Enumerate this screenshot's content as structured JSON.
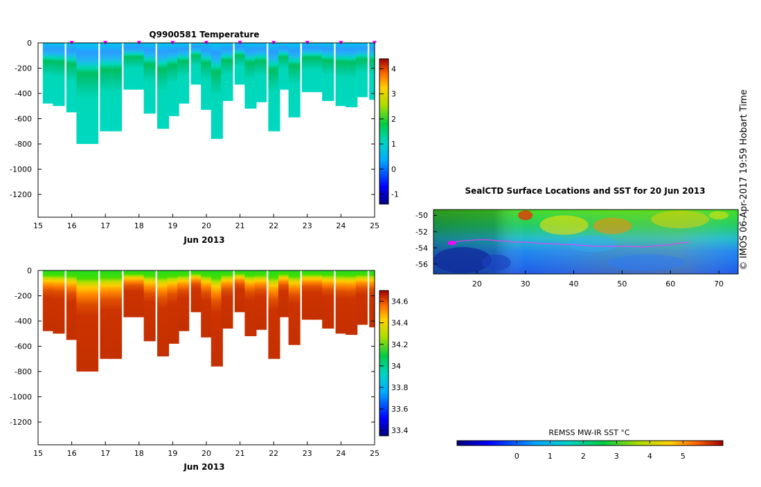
{
  "chart_data": [
    {
      "type": "heatmap",
      "title": "Q9900581  Temperature",
      "xlabel": "Jun 2013",
      "ylabel": "",
      "x_ticks": [
        "15",
        "16",
        "17",
        "18",
        "19",
        "20",
        "21",
        "22",
        "23",
        "24",
        "25"
      ],
      "y_ticks": [
        "0",
        "-200",
        "-400",
        "-600",
        "-800",
        "-1000",
        "-1200"
      ],
      "xlim": [
        15,
        25
      ],
      "ylim": [
        -1380,
        0
      ],
      "colorbar": {
        "ticks": [
          "-1",
          "0",
          "1",
          "2",
          "3",
          "4"
        ],
        "range": [
          -1.4,
          4.4
        ]
      },
      "profile_days": [
        15.3,
        15.6,
        16.0,
        16.3,
        16.6,
        17.0,
        17.3,
        17.7,
        18.0,
        18.3,
        18.7,
        19.0,
        19.3,
        19.7,
        20.0,
        20.3,
        20.6,
        21.0,
        21.3,
        21.6,
        22.0,
        22.3,
        22.6,
        23.0,
        23.3,
        23.6,
        24.0,
        24.3,
        24.6,
        25.0
      ],
      "profile_max_depth_m": [
        480,
        500,
        550,
        800,
        800,
        700,
        700,
        370,
        370,
        560,
        680,
        580,
        480,
        330,
        530,
        760,
        460,
        330,
        520,
        470,
        700,
        370,
        590,
        390,
        390,
        460,
        500,
        510,
        430,
        450
      ],
      "surface_markers_day": [
        16,
        17,
        18,
        19,
        20,
        21,
        22,
        23,
        24,
        25
      ]
    },
    {
      "type": "heatmap",
      "title": "",
      "xlabel": "Jun 2013",
      "ylabel": "",
      "x_ticks": [
        "15",
        "16",
        "17",
        "18",
        "19",
        "20",
        "21",
        "22",
        "23",
        "24",
        "25"
      ],
      "y_ticks": [
        "0",
        "-200",
        "-400",
        "-600",
        "-800",
        "-1000",
        "-1200"
      ],
      "xlim": [
        15,
        25
      ],
      "ylim": [
        -1380,
        0
      ],
      "colorbar": {
        "ticks": [
          "34.6",
          "34.4",
          "34.2",
          "34",
          "33.8",
          "33.6",
          "33.4"
        ],
        "range": [
          33.35,
          34.7
        ]
      }
    },
    {
      "type": "heatmap",
      "title": "SealCTD Surface Locations and SST for 20 Jun 2013",
      "x_ticks": [
        "20",
        "30",
        "40",
        "50",
        "60",
        "70"
      ],
      "y_ticks": [
        "-50",
        "-52",
        "-54",
        "-56"
      ],
      "xlim": [
        11,
        74
      ],
      "ylim": [
        -57.2,
        -49.3
      ],
      "colorbar": {
        "label": "REMSS MW-IR SST °C",
        "ticks": [
          "0",
          "1",
          "2",
          "3",
          "4",
          "5"
        ],
        "range": [
          -1.8,
          6.2
        ]
      },
      "track_lon": [
        14.8,
        16,
        18,
        20,
        22,
        24,
        26,
        28,
        30,
        32,
        34,
        36,
        38,
        40,
        42,
        44,
        46,
        48,
        50,
        52,
        54,
        56,
        58,
        60,
        62,
        64
      ],
      "track_lat": [
        -53.4,
        -53.2,
        -53.1,
        -53.0,
        -53.0,
        -53.1,
        -53.2,
        -53.3,
        -53.3,
        -53.4,
        -53.5,
        -53.5,
        -53.6,
        -53.6,
        -53.7,
        -53.8,
        -53.8,
        -53.8,
        -53.8,
        -53.8,
        -53.9,
        -53.8,
        -53.7,
        -53.6,
        -53.4,
        -53.3
      ]
    }
  ],
  "credit": "© IMOS 06-Apr-2017 19:59 Hobart Time",
  "colors": {
    "marker": "#ff00ff",
    "track": "#ff33ff",
    "axis": "#000000"
  }
}
